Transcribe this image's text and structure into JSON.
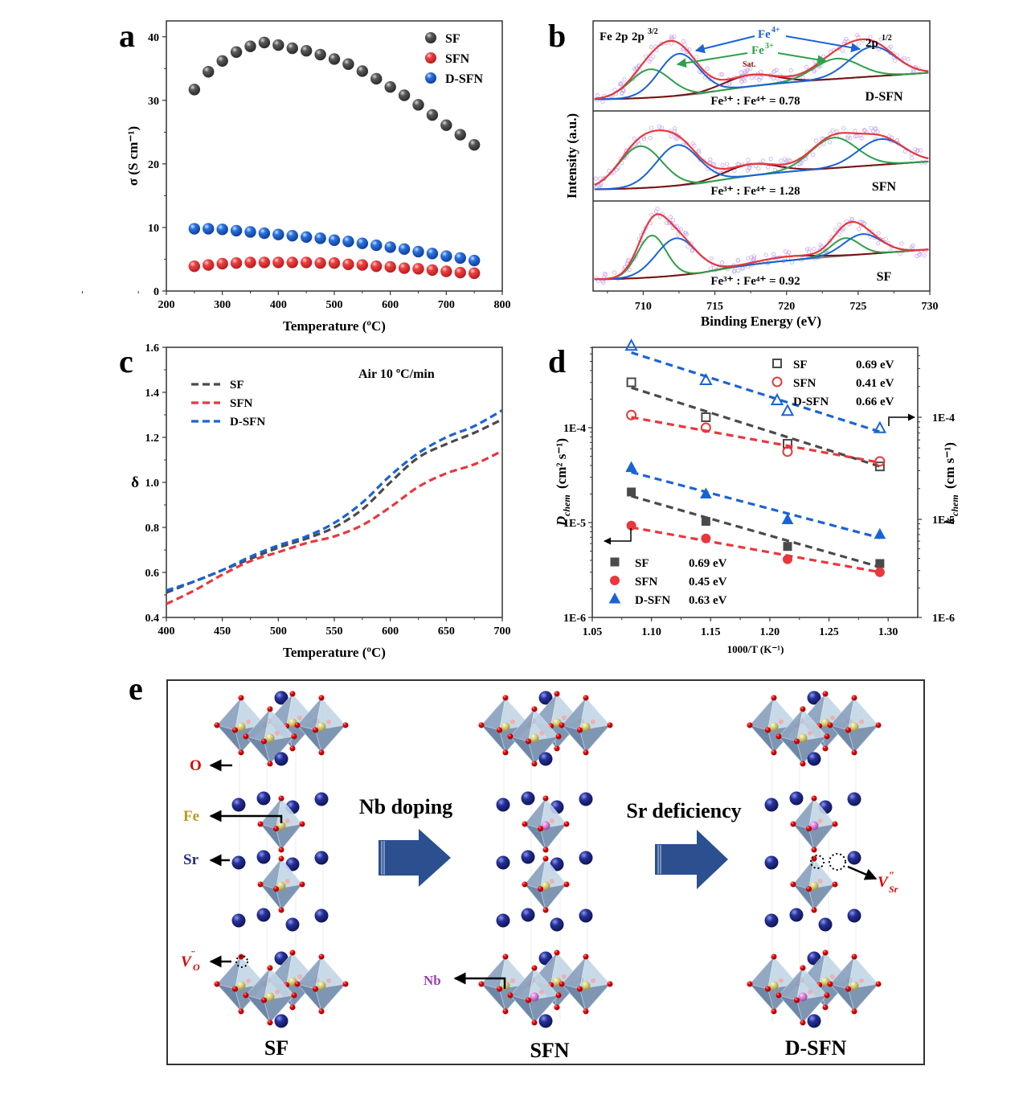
{
  "figure": {
    "panel_labels": [
      "a",
      "b",
      "c",
      "d",
      "e"
    ]
  },
  "chart_data": [
    {
      "panel": "a",
      "type": "scatter",
      "title": "",
      "xlabel": "Temperature (ºC)",
      "ylabel": "σ (S cm⁻¹)",
      "xlim": [
        200,
        800
      ],
      "ylim": [
        0,
        42.5
      ],
      "xticks": [
        200,
        300,
        400,
        500,
        600,
        700,
        800
      ],
      "yticks": [
        0,
        10,
        20,
        30,
        40
      ],
      "legend": "top-right",
      "x": [
        250,
        275,
        300,
        325,
        350,
        375,
        400,
        425,
        450,
        475,
        500,
        525,
        550,
        575,
        600,
        625,
        650,
        675,
        700,
        725,
        750
      ],
      "series": [
        {
          "name": "SF",
          "color": "#4a4a4a",
          "values": [
            31.7,
            34.5,
            36.2,
            37.6,
            38.5,
            39.1,
            38.7,
            38.2,
            37.8,
            37.2,
            36.5,
            35.7,
            34.6,
            33.4,
            32.1,
            30.8,
            29.3,
            27.7,
            26.1,
            24.6,
            23.0
          ]
        },
        {
          "name": "SFN",
          "color": "#e8383d",
          "values": [
            3.9,
            4.1,
            4.3,
            4.4,
            4.5,
            4.5,
            4.5,
            4.5,
            4.5,
            4.4,
            4.4,
            4.2,
            4.1,
            3.9,
            3.8,
            3.6,
            3.5,
            3.3,
            3.1,
            2.9,
            2.8
          ]
        },
        {
          "name": "D-SFN",
          "color": "#1a63d6",
          "values": [
            9.8,
            9.8,
            9.7,
            9.5,
            9.3,
            9.1,
            8.9,
            8.7,
            8.5,
            8.3,
            8.0,
            7.8,
            7.5,
            7.2,
            6.9,
            6.6,
            6.2,
            5.9,
            5.5,
            5.2,
            4.8
          ]
        }
      ]
    },
    {
      "panel": "b",
      "type": "line",
      "title": "Fe 2p",
      "xlabel": "Binding Energy (eV)",
      "ylabel": "Intensity (a.u.)",
      "xlim": [
        706.5,
        730
      ],
      "xticks": [
        710,
        715,
        720,
        725,
        730
      ],
      "annotations": {
        "peak_3_2": "2p",
        "peak_3_2_sup": "3/2",
        "peak_1_2": "2p",
        "peak_1_2_sup": "1/2",
        "fe4": "Fe",
        "fe4_sup": "4+",
        "fe3": "Fe",
        "fe3_sup": "3+",
        "sat": "Sat."
      },
      "components": [
        {
          "name": "Fe4+ fit",
          "color": "#1a63d6"
        },
        {
          "name": "Fe3+ fit",
          "color": "#2ea04a"
        },
        {
          "name": "Satellite",
          "color": "#7a1010"
        },
        {
          "name": "Envelope",
          "color": "#e8383d"
        },
        {
          "name": "Background",
          "color": "#808080"
        },
        {
          "name": "Raw data",
          "color": "#c8a8f0"
        }
      ],
      "subplots": [
        {
          "sample": "D-SFN",
          "ratio_label": "Fe³⁺ : Fe⁴⁺ = 0.78",
          "ratio": 0.78,
          "fe3_peaks": [
            {
              "center": 710.5,
              "height": 0.42,
              "width": 1.4
            },
            {
              "center": 723.5,
              "height": 0.3,
              "width": 1.6
            }
          ],
          "fe4_peaks": [
            {
              "center": 712.5,
              "height": 0.62,
              "width": 1.4
            },
            {
              "center": 726.0,
              "height": 0.44,
              "width": 1.6
            }
          ],
          "sat": {
            "center": 717.5,
            "height": 0.17,
            "width": 1.8
          },
          "baseline": [
            0.0,
            0.4
          ]
        },
        {
          "sample": "SFN",
          "ratio_label": "Fe³⁺ : Fe⁴⁺ = 1.28",
          "ratio": 1.28,
          "fe3_peaks": [
            {
              "center": 709.8,
              "height": 0.62,
              "width": 1.5
            },
            {
              "center": 723.3,
              "height": 0.45,
              "width": 1.6
            }
          ],
          "fe4_peaks": [
            {
              "center": 712.4,
              "height": 0.6,
              "width": 1.5
            },
            {
              "center": 726.6,
              "height": 0.38,
              "width": 1.6
            }
          ],
          "sat": {
            "center": 717.5,
            "height": 0.17,
            "width": 1.8
          },
          "baseline": [
            0.0,
            0.42
          ]
        },
        {
          "sample": "SF",
          "ratio_label": "Fe³⁺ : Fe⁴⁺ = 0.92",
          "ratio": 0.92,
          "fe3_peaks": [
            {
              "center": 710.6,
              "height": 0.62,
              "width": 1.0
            },
            {
              "center": 724.1,
              "height": 0.26,
              "width": 1.0
            }
          ],
          "fe4_peaks": [
            {
              "center": 712.3,
              "height": 0.55,
              "width": 1.4
            },
            {
              "center": 725.3,
              "height": 0.3,
              "width": 1.3
            }
          ],
          "sat": {
            "center": 720.0,
            "height": 0.06,
            "width": 2.0
          },
          "baseline": [
            0.0,
            0.45
          ]
        }
      ]
    },
    {
      "panel": "c",
      "type": "line",
      "title": "",
      "annotation": "Air   10 ºC/min",
      "xlabel": "Temperature (ºC)",
      "ylabel": "δ",
      "xlim": [
        400,
        700
      ],
      "ylim": [
        0.4,
        1.6
      ],
      "xticks": [
        400,
        450,
        500,
        550,
        600,
        650,
        700
      ],
      "yticks": [
        0.4,
        0.6,
        0.8,
        1.0,
        1.2,
        1.4,
        1.6
      ],
      "legend": "top-left",
      "x": [
        400,
        425,
        450,
        475,
        500,
        525,
        550,
        575,
        600,
        625,
        650,
        675,
        700
      ],
      "series": [
        {
          "name": "SF",
          "color": "#4a4a4a",
          "values": [
            0.51,
            0.56,
            0.61,
            0.66,
            0.71,
            0.75,
            0.8,
            0.88,
            1.0,
            1.11,
            1.17,
            1.22,
            1.28
          ]
        },
        {
          "name": "SFN",
          "color": "#e8383d",
          "values": [
            0.46,
            0.52,
            0.59,
            0.65,
            0.69,
            0.73,
            0.76,
            0.81,
            0.89,
            0.98,
            1.04,
            1.08,
            1.14
          ]
        },
        {
          "name": "D-SFN",
          "color": "#1a63d6",
          "values": [
            0.52,
            0.56,
            0.61,
            0.67,
            0.72,
            0.76,
            0.82,
            0.91,
            1.03,
            1.13,
            1.2,
            1.25,
            1.32
          ]
        }
      ]
    },
    {
      "panel": "d",
      "type": "scatter",
      "title": "",
      "xlabel": "1000/T (K⁻¹)",
      "ylabel_left": "D_chem(cm² s⁻¹)",
      "ylabel_left_main": "D",
      "ylabel_left_sub": "chem",
      "ylabel_left_unit": "(cm² s⁻¹)",
      "ylabel_right_main": "k",
      "ylabel_right_sub": "chem",
      "ylabel_right_unit": "(cm s⁻¹)",
      "yscale": "log",
      "xlim": [
        1.05,
        1.325
      ],
      "ylim_left": [
        1e-06,
        0.0006
      ],
      "xticks": [
        "1.05",
        "1.10",
        "1.15",
        "1.20",
        "1.25",
        "1.30"
      ],
      "yticks_left": [
        "1E-6",
        "1E-5",
        "1E-4"
      ],
      "yticks_right": [
        "1E-6",
        "1E-5",
        "1E-4"
      ],
      "x": [
        1.083,
        1.146,
        1.215,
        1.293
      ],
      "legend_top_right": [
        {
          "name": "SF",
          "ea": "0.69 eV",
          "marker": "open-square",
          "color": "#4a4a4a"
        },
        {
          "name": "SFN",
          "ea": "0.41 eV",
          "marker": "open-circle",
          "color": "#e8383d"
        },
        {
          "name": "D-SFN",
          "ea": "0.66 eV",
          "marker": "open-triangle",
          "color": "#1a63d6"
        }
      ],
      "legend_bottom_left": [
        {
          "name": "SF",
          "ea": "0.69 eV",
          "marker": "square",
          "color": "#4a4a4a"
        },
        {
          "name": "SFN",
          "ea": "0.45 eV",
          "marker": "circle",
          "color": "#e8383d"
        },
        {
          "name": "D-SFN",
          "ea": "0.63 eV",
          "marker": "triangle",
          "color": "#1a63d6"
        }
      ],
      "series": [
        {
          "name": "SF k_chem",
          "axis": "right",
          "marker": "open-square",
          "color": "#4a4a4a",
          "values": [
            0.00022,
            0.0001,
            5.5e-05,
            3.3e-05
          ],
          "fit": [
            0.000195,
            3.3e-05
          ]
        },
        {
          "name": "SFN k_chem",
          "axis": "right",
          "marker": "open-circle",
          "color": "#e8383d",
          "values": [
            0.000105,
            7.9e-05,
            4.6e-05,
            3.7e-05
          ],
          "fit": [
            0.0001,
            3.6e-05
          ]
        },
        {
          "name": "D-SFN k_chem",
          "axis": "right",
          "marker": "open-triangle",
          "color": "#1a63d6",
          "values": [
            0.0005,
            0.00023,
            0.000115,
            7.8e-05
          ],
          "fit": [
            0.00043,
            7.2e-05
          ]
        },
        {
          "name": "SF D_chem",
          "axis": "left",
          "marker": "square",
          "color": "#4a4a4a",
          "values": [
            2.1e-05,
            1.03e-05,
            5.6e-06,
            3.7e-06
          ],
          "fit": [
            1.9e-05,
            3.4e-06
          ]
        },
        {
          "name": "SFN D_chem",
          "axis": "left",
          "marker": "circle",
          "color": "#e8383d",
          "values": [
            9.3e-06,
            6.8e-06,
            4.1e-06,
            3e-06
          ],
          "fit": [
            8.9e-06,
            3e-06
          ]
        },
        {
          "name": "D-SFN D_chem",
          "axis": "left",
          "marker": "triangle",
          "color": "#1a63d6",
          "values": [
            3.8e-05,
            2e-05,
            1.07e-05,
            7.5e-06
          ],
          "fit": [
            3.4e-05,
            6.9e-06
          ]
        }
      ]
    }
  ],
  "schematic": {
    "panel": "e",
    "structures": [
      {
        "name": "SF",
        "nb": false,
        "sr_vacancy": false
      },
      {
        "name": "SFN",
        "nb": true,
        "sr_vacancy": false
      },
      {
        "name": "D-SFN",
        "nb": true,
        "sr_vacancy": true
      }
    ],
    "arrows": [
      {
        "label": "Nb doping"
      },
      {
        "label": "Sr deficiency"
      }
    ],
    "atom_labels": {
      "O": "O",
      "Fe": "Fe",
      "Sr": "Sr",
      "Nb": "Nb",
      "VO_main": "V",
      "VO_sub": "O",
      "VO_sup": "¨",
      "VSr_main": "V",
      "VSr_sub": "Sr",
      "VSr_sup": "″"
    },
    "colors": {
      "O": "#e00000",
      "Fe": "#c9b52a",
      "Sr": "#252a8a",
      "Nb": "#9b3fb5",
      "octahedron": "#7f96b3",
      "arrow": "#2b4f8f",
      "vacancy_label": "#e00000"
    }
  }
}
